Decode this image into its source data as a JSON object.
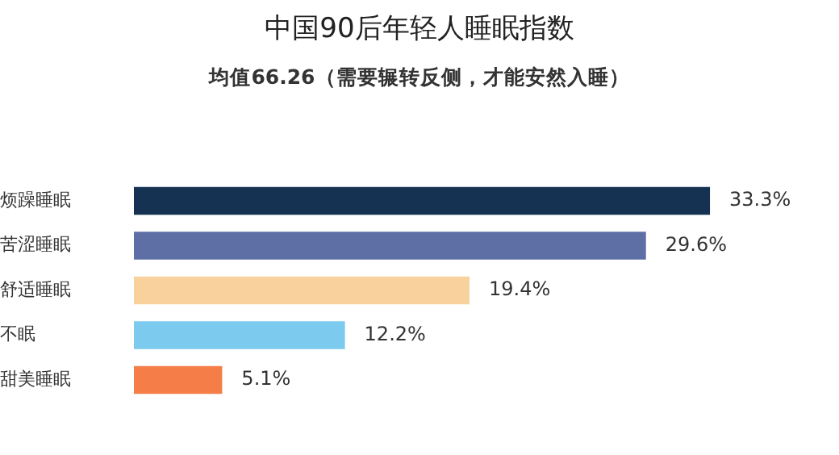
{
  "chart_data": {
    "type": "bar",
    "orientation": "horizontal",
    "title": "中国90后年轻人睡眠指数",
    "subtitle": "均值66.26（需要辗转反侧，才能安然入睡）",
    "categories": [
      "烦躁睡眠",
      "苦涩睡眠",
      "舒适睡眠",
      "不眠",
      "甜美睡眠"
    ],
    "values": [
      33.3,
      29.6,
      19.4,
      12.2,
      5.1
    ],
    "value_labels": [
      "33.3%",
      "29.6%",
      "19.4%",
      "12.2%",
      "5.1%"
    ],
    "colors": [
      "#163253",
      "#5d6fa5",
      "#f9d19d",
      "#7ccbee",
      "#f47d48"
    ],
    "grid": false,
    "legend": false
  }
}
